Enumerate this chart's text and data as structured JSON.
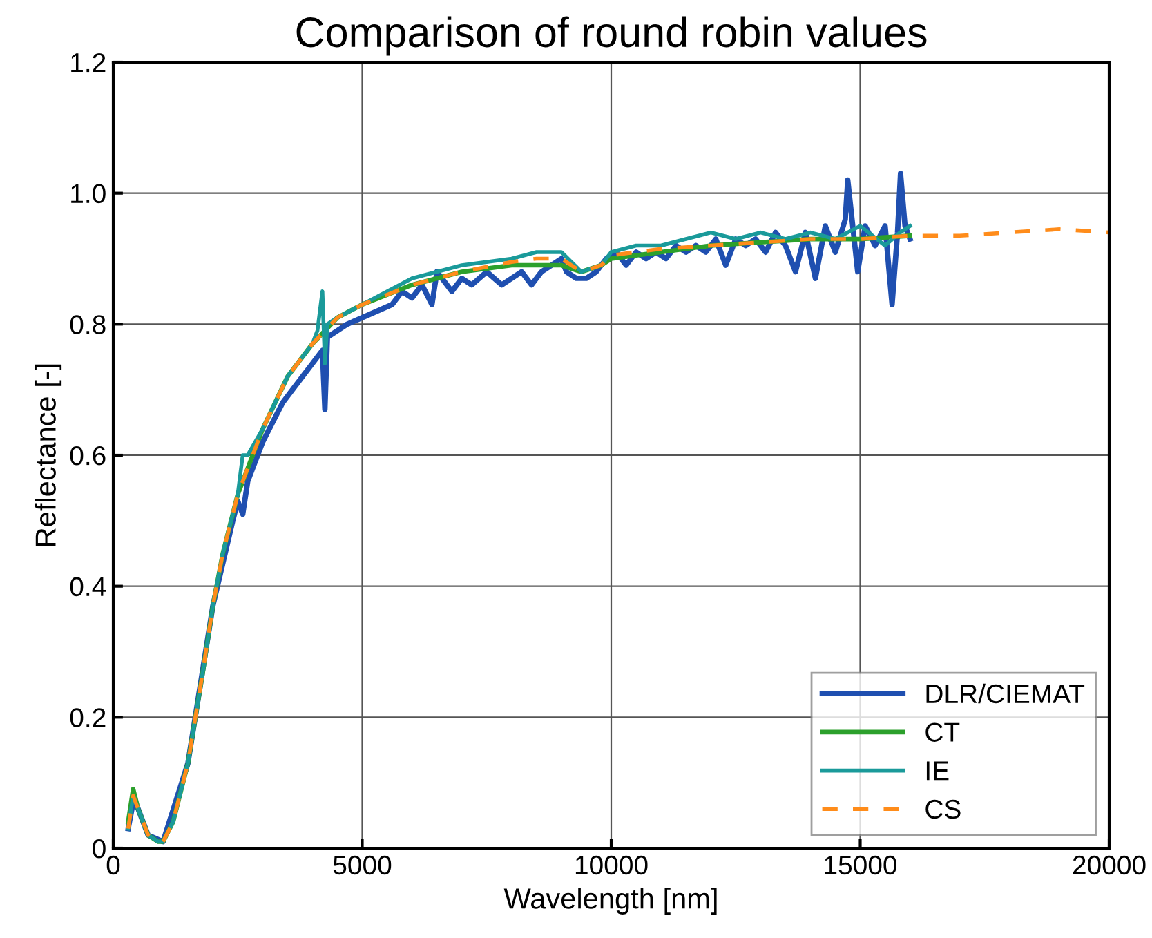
{
  "chart_data": {
    "type": "line",
    "title": "Comparison of round robin values",
    "xlabel": "Wavelength [nm]",
    "ylabel": "Reflectance [-]",
    "xlim": [
      0,
      20000
    ],
    "ylim": [
      0,
      1.2
    ],
    "xticks": [
      0,
      5000,
      10000,
      15000,
      20000
    ],
    "yticks": [
      0,
      0.2,
      0.4,
      0.6,
      0.8,
      {
        "value": 1,
        "label": "1.0"
      },
      1.2
    ],
    "grid": true,
    "legend": "bottom right",
    "series": [
      {
        "name": "DLR/CIEMAT",
        "color": "#1f4fb0",
        "line_style": "solid",
        "x": [
          300,
          400,
          500,
          700,
          1000,
          1500,
          2000,
          2400,
          2500,
          2600,
          2700,
          2800,
          3000,
          3200,
          3400,
          3600,
          3800,
          4000,
          4200,
          4250,
          4300,
          4500,
          4700,
          5000,
          5300,
          5600,
          5800,
          6000,
          6200,
          6400,
          6500,
          6800,
          7000,
          7200,
          7500,
          7800,
          8000,
          8200,
          8400,
          8600,
          8800,
          9000,
          9100,
          9300,
          9500,
          9700,
          9900,
          10100,
          10300,
          10500,
          10700,
          10900,
          11100,
          11300,
          11500,
          11700,
          11900,
          12100,
          12300,
          12500,
          12700,
          12900,
          13100,
          13300,
          13500,
          13700,
          13900,
          14100,
          14300,
          14500,
          14700,
          14750,
          14850,
          14950,
          15100,
          15300,
          15500,
          15640,
          15750,
          15810,
          15900,
          16000
        ],
        "values": [
          0.03,
          0.07,
          0.06,
          0.02,
          0.01,
          0.13,
          0.37,
          0.5,
          0.53,
          0.51,
          0.56,
          0.58,
          0.62,
          0.65,
          0.68,
          0.7,
          0.72,
          0.74,
          0.76,
          0.67,
          0.78,
          0.79,
          0.8,
          0.81,
          0.82,
          0.83,
          0.85,
          0.84,
          0.86,
          0.83,
          0.88,
          0.85,
          0.87,
          0.86,
          0.88,
          0.86,
          0.87,
          0.88,
          0.86,
          0.88,
          0.89,
          0.9,
          0.88,
          0.87,
          0.87,
          0.88,
          0.9,
          0.91,
          0.89,
          0.91,
          0.9,
          0.91,
          0.9,
          0.92,
          0.91,
          0.92,
          0.91,
          0.93,
          0.89,
          0.93,
          0.92,
          0.93,
          0.91,
          0.94,
          0.92,
          0.88,
          0.94,
          0.87,
          0.95,
          0.91,
          0.96,
          1.02,
          0.95,
          0.88,
          0.95,
          0.92,
          0.95,
          0.83,
          0.94,
          1.03,
          0.95,
          0.93
        ]
      },
      {
        "name": "CT",
        "color": "#2ca02c",
        "line_style": "solid",
        "x": [
          300,
          400,
          500,
          700,
          900,
          1000,
          1200,
          1500,
          1800,
          2000,
          2200,
          2500,
          3000,
          3500,
          4000,
          4500,
          5000,
          6000,
          7000,
          8000,
          8500,
          9000,
          9400,
          9800,
          10000,
          11000,
          12000,
          13000,
          14000,
          15000,
          16000
        ],
        "values": [
          0.04,
          0.09,
          0.06,
          0.02,
          0.01,
          0.01,
          0.04,
          0.13,
          0.27,
          0.37,
          0.45,
          0.54,
          0.64,
          0.72,
          0.77,
          0.81,
          0.83,
          0.86,
          0.88,
          0.89,
          0.89,
          0.89,
          0.88,
          0.89,
          0.9,
          0.91,
          0.92,
          0.925,
          0.93,
          0.93,
          0.935
        ]
      },
      {
        "name": "IE",
        "color": "#1a9a9a",
        "line_style": "solid",
        "x": [
          300,
          400,
          500,
          700,
          900,
          1000,
          1200,
          1500,
          1800,
          2000,
          2200,
          2500,
          2600,
          2700,
          3000,
          3500,
          4000,
          4100,
          4200,
          4250,
          4300,
          4500,
          5000,
          6000,
          6500,
          7000,
          8000,
          8500,
          9000,
          9400,
          9800,
          10000,
          10500,
          11000,
          11500,
          12000,
          12500,
          13000,
          13500,
          14000,
          14500,
          15000,
          15500,
          15800,
          16000
        ],
        "values": [
          0.03,
          0.08,
          0.06,
          0.02,
          0.01,
          0.01,
          0.04,
          0.13,
          0.27,
          0.37,
          0.45,
          0.54,
          0.6,
          0.6,
          0.64,
          0.72,
          0.77,
          0.79,
          0.85,
          0.74,
          0.8,
          0.81,
          0.83,
          0.87,
          0.88,
          0.89,
          0.9,
          0.91,
          0.91,
          0.88,
          0.89,
          0.91,
          0.92,
          0.92,
          0.93,
          0.94,
          0.93,
          0.94,
          0.93,
          0.94,
          0.93,
          0.95,
          0.92,
          0.94,
          0.95
        ]
      },
      {
        "name": "CS",
        "color": "#ff8c1a",
        "line_style": "dashed",
        "x": [
          300,
          400,
          500,
          700,
          900,
          1000,
          1200,
          1500,
          1800,
          2000,
          2200,
          2500,
          3000,
          3500,
          4000,
          4500,
          5000,
          6000,
          7000,
          8000,
          8500,
          9000,
          9400,
          9800,
          10000,
          11000,
          12000,
          13000,
          14000,
          15000,
          16000,
          17000,
          18000,
          19000,
          20000
        ],
        "values": [
          0.03,
          0.08,
          0.06,
          0.02,
          0.01,
          0.01,
          0.04,
          0.13,
          0.27,
          0.37,
          0.45,
          0.54,
          0.64,
          0.72,
          0.77,
          0.81,
          0.83,
          0.86,
          0.88,
          0.895,
          0.9,
          0.9,
          0.88,
          0.89,
          0.905,
          0.915,
          0.92,
          0.925,
          0.93,
          0.93,
          0.935,
          0.935,
          0.94,
          0.945,
          0.94
        ]
      }
    ]
  }
}
